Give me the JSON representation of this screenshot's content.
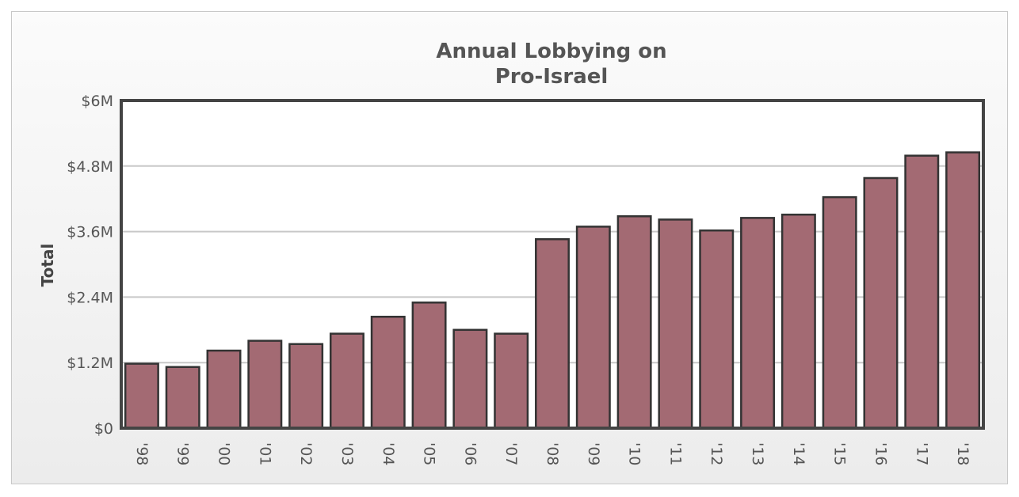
{
  "chart_data": {
    "type": "bar",
    "title": [
      "Annual Lobbying on",
      "Pro-Israel"
    ],
    "xlabel": "",
    "ylabel": "Total",
    "categories": [
      "'98",
      "'99",
      "'00",
      "'01",
      "'02",
      "'03",
      "'04",
      "'05",
      "'06",
      "'07",
      "'08",
      "'09",
      "'10",
      "'11",
      "'12",
      "'13",
      "'14",
      "'15",
      "'16",
      "'17",
      "'18"
    ],
    "values": [
      1180000,
      1120000,
      1420000,
      1600000,
      1540000,
      1730000,
      2040000,
      2300000,
      1800000,
      1730000,
      3460000,
      3690000,
      3880000,
      3820000,
      3620000,
      3850000,
      3910000,
      4230000,
      4580000,
      4990000,
      5050000
    ],
    "ylim": [
      0,
      6000000
    ],
    "yticks": [
      0,
      1200000,
      2400000,
      3600000,
      4800000,
      6000000
    ],
    "ytick_labels": [
      "$0",
      "$1.2M",
      "$2.4M",
      "$3.6M",
      "$4.8M",
      "$6M"
    ],
    "grid": true,
    "bar_color": "#a36a73",
    "legend": "none"
  }
}
